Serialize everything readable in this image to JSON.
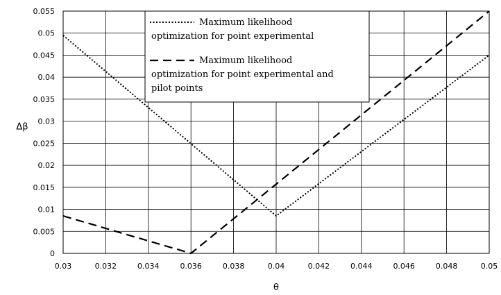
{
  "chart_data": {
    "type": "line",
    "xlabel": "θ",
    "ylabel": "Δβ",
    "xlim": [
      0.03,
      0.05
    ],
    "ylim": [
      0,
      0.055
    ],
    "x_ticks": [
      "0.03",
      "0.032",
      "0.034",
      "0.036",
      "0.038",
      "0.04",
      "0.042",
      "0.044",
      "0.046",
      "0.048",
      "0.05"
    ],
    "y_ticks": [
      "0",
      "0.005",
      "0.01",
      "0.015",
      "0.02",
      "0.025",
      "0.03",
      "0.035",
      "0.04",
      "0.045",
      "0.05",
      "0.055"
    ],
    "grid": true,
    "legend_position": "top-center",
    "series": [
      {
        "name": "Maximum likelihood optimization for point experimental",
        "legend_lines": [
          "Maximum likelihood",
          "optimization for point experimental"
        ],
        "style": "dotted",
        "x": [
          0.03,
          0.04,
          0.05
        ],
        "y": [
          0.0495,
          0.0085,
          0.045
        ]
      },
      {
        "name": "Maximum likelihood optimization for point experimental and pilot points",
        "legend_lines": [
          "Maximum likelihood",
          "optimization for point experimental and",
          "pilot points"
        ],
        "style": "dashed",
        "x": [
          0.03,
          0.036,
          0.05
        ],
        "y": [
          0.0085,
          0.0,
          0.055
        ]
      }
    ]
  }
}
